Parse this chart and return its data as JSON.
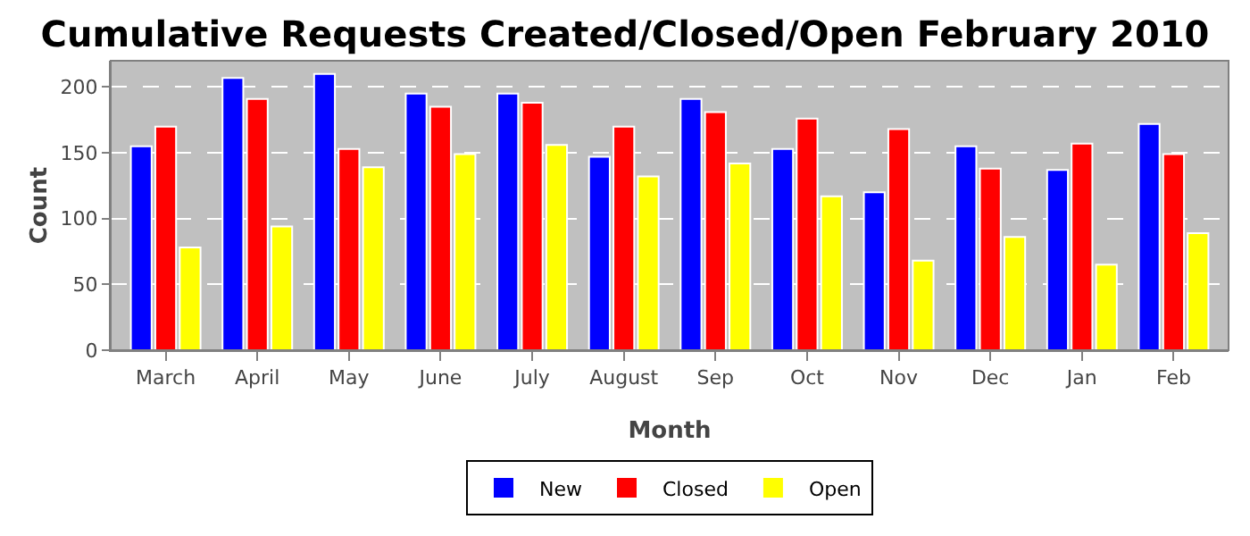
{
  "chart_data": {
    "type": "bar",
    "title": "Cumulative Requests Created/Closed/Open February 2010",
    "xlabel": "Month",
    "ylabel": "Count",
    "categories": [
      "March",
      "April",
      "May",
      "June",
      "July",
      "August",
      "Sep",
      "Oct",
      "Nov",
      "Dec",
      "Jan",
      "Feb"
    ],
    "series": [
      {
        "name": "New",
        "color": "#0000ff",
        "values": [
          155,
          207,
          210,
          195,
          195,
          147,
          191,
          153,
          120,
          155,
          137,
          172
        ]
      },
      {
        "name": "Closed",
        "color": "#ff0000",
        "values": [
          170,
          191,
          153,
          185,
          188,
          170,
          181,
          176,
          168,
          138,
          157,
          149
        ]
      },
      {
        "name": "Open",
        "color": "#ffff00",
        "values": [
          78,
          94,
          139,
          149,
          156,
          132,
          142,
          117,
          68,
          86,
          65,
          89
        ]
      }
    ],
    "ylim": [
      0,
      220
    ],
    "yticks": [
      0,
      50,
      100,
      150,
      200
    ],
    "grid": "y",
    "legend": "bottom"
  }
}
